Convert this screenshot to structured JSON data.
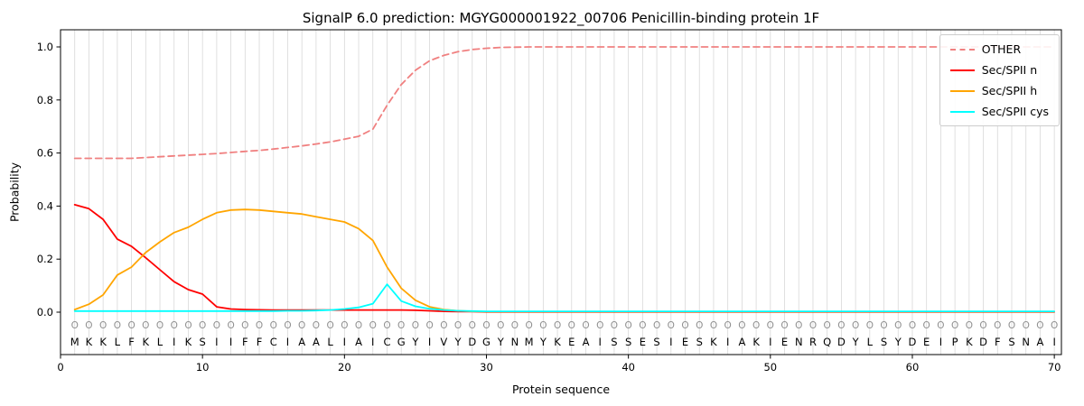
{
  "chart_data": {
    "type": "line",
    "title": "SignalP 6.0 prediction: MGYG000001922_00706 Penicillin-binding protein 1F",
    "xlabel": "Protein sequence",
    "ylabel": "Probability",
    "xlim": [
      0,
      70.5
    ],
    "ylim": [
      0.0,
      1.0
    ],
    "xticks": [
      0,
      10,
      20,
      30,
      40,
      50,
      60,
      70
    ],
    "yticks": [
      0.0,
      0.2,
      0.4,
      0.6,
      0.8,
      1.0
    ],
    "grid": "vertical-per-residue",
    "legend_position": "upper right",
    "sequence": "MKKLFKLIKSIIFFCIAALIAICGYIVYDGYNMYKEAISSESIESKIAKIENRQDYLSYDEIPKDFSNAI",
    "position_labels": "OOOOOOOOOOOOOOOOOOOOOOOOOOOOOOOOOOOOOOOOOOOOOOOOOOOOOOOOOOOOOOOOOOOOOO",
    "series": [
      {
        "name": "OTHER",
        "color": "#f08080",
        "dash": true,
        "values": [
          0.58,
          0.58,
          0.58,
          0.58,
          0.58,
          0.583,
          0.586,
          0.589,
          0.592,
          0.595,
          0.598,
          0.602,
          0.606,
          0.61,
          0.615,
          0.621,
          0.627,
          0.634,
          0.642,
          0.652,
          0.663,
          0.69,
          0.78,
          0.858,
          0.912,
          0.948,
          0.968,
          0.982,
          0.99,
          0.995,
          0.998,
          0.999,
          1.0,
          1.0,
          1.0,
          1.0,
          1.0,
          1.0,
          1.0,
          1.0,
          1.0,
          1.0,
          1.0,
          1.0,
          1.0,
          1.0,
          1.0,
          1.0,
          1.0,
          1.0,
          1.0,
          1.0,
          1.0,
          1.0,
          1.0,
          1.0,
          1.0,
          1.0,
          1.0,
          1.0,
          1.0,
          1.0,
          1.0,
          1.0,
          1.0,
          1.0,
          1.0,
          1.0,
          1.0,
          1.0
        ]
      },
      {
        "name": "Sec/SPII n",
        "color": "#ff0000",
        "dash": false,
        "values": [
          0.405,
          0.39,
          0.35,
          0.275,
          0.248,
          0.205,
          0.16,
          0.115,
          0.085,
          0.068,
          0.02,
          0.012,
          0.01,
          0.009,
          0.008,
          0.008,
          0.008,
          0.008,
          0.008,
          0.008,
          0.008,
          0.008,
          0.008,
          0.008,
          0.007,
          0.005,
          0.003,
          0.002,
          0.002,
          0.001,
          0.001,
          0.001,
          0.001,
          0.001,
          0.001,
          0.001,
          0.001,
          0.001,
          0.001,
          0.001,
          0.001,
          0.001,
          0.001,
          0.001,
          0.001,
          0.001,
          0.001,
          0.001,
          0.001,
          0.001,
          0.001,
          0.001,
          0.001,
          0.001,
          0.001,
          0.001,
          0.001,
          0.001,
          0.001,
          0.001,
          0.001,
          0.001,
          0.001,
          0.001,
          0.001,
          0.001,
          0.001,
          0.001,
          0.001,
          0.001
        ]
      },
      {
        "name": "Sec/SPII h",
        "color": "#ffa500",
        "dash": false,
        "values": [
          0.01,
          0.03,
          0.065,
          0.14,
          0.17,
          0.225,
          0.265,
          0.3,
          0.32,
          0.35,
          0.375,
          0.385,
          0.387,
          0.385,
          0.38,
          0.375,
          0.37,
          0.36,
          0.35,
          0.34,
          0.315,
          0.27,
          0.17,
          0.09,
          0.045,
          0.02,
          0.01,
          0.005,
          0.003,
          0.002,
          0.002,
          0.002,
          0.002,
          0.002,
          0.002,
          0.002,
          0.002,
          0.002,
          0.002,
          0.002,
          0.002,
          0.002,
          0.002,
          0.002,
          0.002,
          0.002,
          0.002,
          0.002,
          0.002,
          0.002,
          0.002,
          0.002,
          0.002,
          0.002,
          0.002,
          0.002,
          0.002,
          0.002,
          0.002,
          0.002,
          0.002,
          0.002,
          0.002,
          0.002,
          0.002,
          0.002,
          0.002,
          0.002,
          0.002,
          0.002
        ]
      },
      {
        "name": "Sec/SPII cys",
        "color": "#00ffff",
        "dash": false,
        "values": [
          0.004,
          0.004,
          0.004,
          0.004,
          0.004,
          0.004,
          0.004,
          0.004,
          0.004,
          0.004,
          0.004,
          0.004,
          0.004,
          0.004,
          0.004,
          0.005,
          0.005,
          0.006,
          0.008,
          0.012,
          0.018,
          0.032,
          0.105,
          0.042,
          0.022,
          0.013,
          0.008,
          0.005,
          0.004,
          0.003,
          0.003,
          0.003,
          0.003,
          0.003,
          0.003,
          0.003,
          0.003,
          0.003,
          0.003,
          0.003,
          0.003,
          0.003,
          0.003,
          0.003,
          0.003,
          0.003,
          0.003,
          0.003,
          0.003,
          0.003,
          0.003,
          0.003,
          0.003,
          0.003,
          0.003,
          0.003,
          0.003,
          0.003,
          0.003,
          0.003,
          0.003,
          0.003,
          0.003,
          0.003,
          0.003,
          0.003,
          0.003,
          0.003,
          0.003,
          0.003
        ]
      }
    ]
  }
}
